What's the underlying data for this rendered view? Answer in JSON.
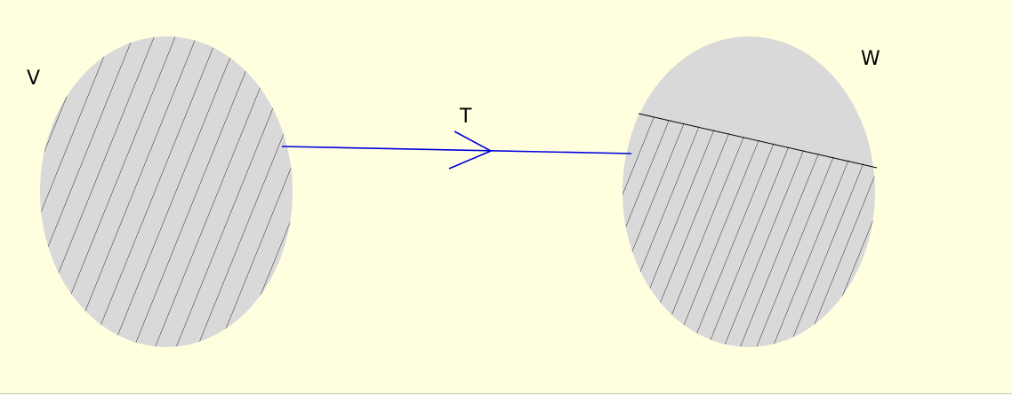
{
  "labels": {
    "domain": "V",
    "codomain": "W",
    "map": "T"
  }
}
